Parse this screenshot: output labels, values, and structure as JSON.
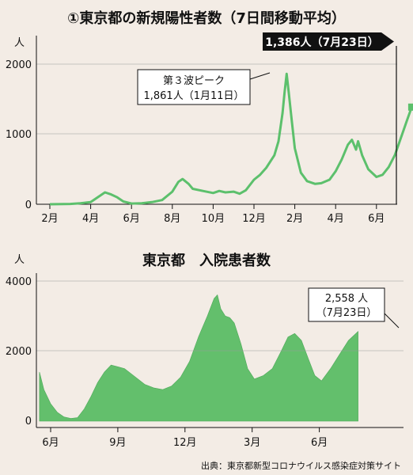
{
  "colors": {
    "background": "#f3ece5",
    "line": "#5cc06c",
    "area": "#63bf6c",
    "callout_bg": "#111111",
    "callout_fg": "#ffffff"
  },
  "charts": [
    {
      "type": "line",
      "title": "①東京都の新規陽性者数（7日間移動平均）",
      "ylabel": "人",
      "ylim": [
        0,
        2200
      ],
      "yticks": [
        "0",
        "1000",
        "2000"
      ],
      "xtick_labels": [
        "2月",
        "4月",
        "6月",
        "8月",
        "10月",
        "12月",
        "2月",
        "4月",
        "6月"
      ],
      "callout_latest": "1,386人（7月23日）",
      "annotation_peak_line1": "第３波ピーク",
      "annotation_peak_line2": "1,861人（1月11日）"
    },
    {
      "type": "area",
      "title": "東京都　入院患者数",
      "ylabel": "人",
      "ylim": [
        0,
        4200
      ],
      "yticks": [
        "0",
        "2000",
        "4000"
      ],
      "xtick_labels": [
        "6月",
        "9月",
        "12月",
        "3月",
        "6月"
      ],
      "annotation_latest_line1": "2,558 人",
      "annotation_latest_line2": "（7月23日）"
    }
  ],
  "chart_data": [
    {
      "type": "line",
      "x_unit": "months since 2020-01-01",
      "points": [
        [
          1.0,
          0
        ],
        [
          2.0,
          5
        ],
        [
          2.5,
          15
        ],
        [
          3.0,
          30
        ],
        [
          3.4,
          110
        ],
        [
          3.7,
          170
        ],
        [
          4.0,
          140
        ],
        [
          4.3,
          100
        ],
        [
          4.6,
          40
        ],
        [
          5.0,
          10
        ],
        [
          5.5,
          15
        ],
        [
          6.0,
          30
        ],
        [
          6.5,
          60
        ],
        [
          7.0,
          180
        ],
        [
          7.3,
          320
        ],
        [
          7.5,
          360
        ],
        [
          7.8,
          290
        ],
        [
          8.0,
          220
        ],
        [
          8.5,
          190
        ],
        [
          9.0,
          160
        ],
        [
          9.3,
          190
        ],
        [
          9.6,
          170
        ],
        [
          10.0,
          180
        ],
        [
          10.3,
          150
        ],
        [
          10.6,
          200
        ],
        [
          11.0,
          350
        ],
        [
          11.3,
          420
        ],
        [
          11.6,
          520
        ],
        [
          12.0,
          700
        ],
        [
          12.2,
          900
        ],
        [
          12.4,
          1300
        ],
        [
          12.5,
          1600
        ],
        [
          12.6,
          1861
        ],
        [
          12.7,
          1600
        ],
        [
          12.85,
          1200
        ],
        [
          13.0,
          800
        ],
        [
          13.3,
          450
        ],
        [
          13.6,
          330
        ],
        [
          14.0,
          290
        ],
        [
          14.3,
          300
        ],
        [
          14.7,
          350
        ],
        [
          15.0,
          470
        ],
        [
          15.3,
          640
        ],
        [
          15.6,
          850
        ],
        [
          15.8,
          920
        ],
        [
          16.0,
          780
        ],
        [
          16.1,
          900
        ],
        [
          16.3,
          700
        ],
        [
          16.6,
          500
        ],
        [
          17.0,
          390
        ],
        [
          17.3,
          420
        ],
        [
          17.6,
          530
        ],
        [
          17.9,
          700
        ],
        [
          18.2,
          950
        ],
        [
          18.5,
          1200
        ],
        [
          18.73,
          1386
        ]
      ],
      "latest": {
        "date": "7月23日",
        "value": 1386
      },
      "peak": {
        "label": "第３波ピーク",
        "date": "1月11日",
        "value": 1861
      }
    },
    {
      "type": "area",
      "x_unit": "months since 2020-01-01",
      "points": [
        [
          4.5,
          1400
        ],
        [
          4.7,
          900
        ],
        [
          5.0,
          500
        ],
        [
          5.3,
          250
        ],
        [
          5.6,
          120
        ],
        [
          5.9,
          80
        ],
        [
          6.2,
          100
        ],
        [
          6.5,
          350
        ],
        [
          6.8,
          700
        ],
        [
          7.1,
          1100
        ],
        [
          7.4,
          1400
        ],
        [
          7.7,
          1600
        ],
        [
          8.0,
          1550
        ],
        [
          8.3,
          1500
        ],
        [
          8.6,
          1350
        ],
        [
          8.9,
          1200
        ],
        [
          9.2,
          1050
        ],
        [
          9.6,
          950
        ],
        [
          10.0,
          900
        ],
        [
          10.4,
          1000
        ],
        [
          10.8,
          1250
        ],
        [
          11.2,
          1700
        ],
        [
          11.6,
          2400
        ],
        [
          12.0,
          3000
        ],
        [
          12.3,
          3500
        ],
        [
          12.45,
          3600
        ],
        [
          12.6,
          3200
        ],
        [
          12.8,
          3000
        ],
        [
          13.0,
          2950
        ],
        [
          13.2,
          2800
        ],
        [
          13.5,
          2200
        ],
        [
          13.8,
          1500
        ],
        [
          14.1,
          1200
        ],
        [
          14.5,
          1300
        ],
        [
          14.9,
          1500
        ],
        [
          15.3,
          2000
        ],
        [
          15.6,
          2400
        ],
        [
          15.9,
          2500
        ],
        [
          16.2,
          2300
        ],
        [
          16.5,
          1800
        ],
        [
          16.8,
          1300
        ],
        [
          17.1,
          1150
        ],
        [
          17.5,
          1500
        ],
        [
          17.9,
          1900
        ],
        [
          18.3,
          2300
        ],
        [
          18.73,
          2558
        ]
      ],
      "latest": {
        "date": "7月23日",
        "value": 2558
      }
    }
  ],
  "source": "出典：東京都新型コロナウイルス感染症対策サイト"
}
